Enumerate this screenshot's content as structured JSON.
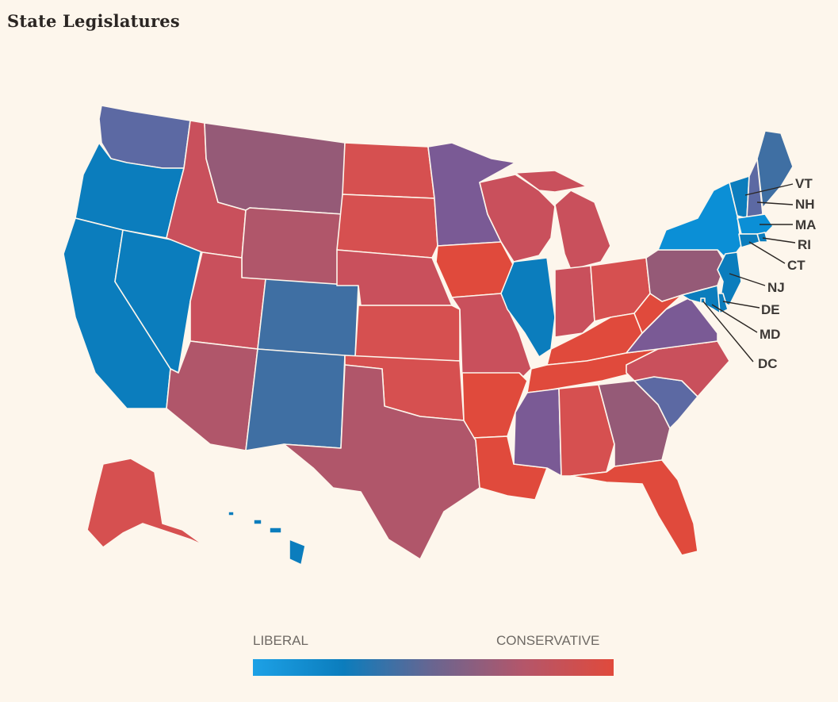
{
  "title": "State Legislatures",
  "legend": {
    "min_label": "LIBERAL",
    "max_label": "CONSERVATIVE",
    "gradient": [
      "#1da1e6",
      "#0b7dbd",
      "#6a6590",
      "#b4566a",
      "#e04a3c"
    ]
  },
  "palette": {
    "lib_bright": "#0b8fd6",
    "lib": "#0b7dbd",
    "blue_gray": "#3f6fa3",
    "indigo": "#5c69a3",
    "purple": "#7a5a95",
    "mauve": "#955a77",
    "rose": "#b0566a",
    "red_rose": "#c9505c",
    "red": "#d65050",
    "bright_red": "#e04a3c"
  },
  "states": [
    {
      "id": "WA",
      "color": "indigo"
    },
    {
      "id": "OR",
      "color": "lib"
    },
    {
      "id": "CA",
      "color": "lib"
    },
    {
      "id": "NV",
      "color": "lib"
    },
    {
      "id": "ID",
      "color": "red_rose"
    },
    {
      "id": "MT",
      "color": "mauve"
    },
    {
      "id": "WY",
      "color": "rose"
    },
    {
      "id": "UT",
      "color": "red_rose"
    },
    {
      "id": "AZ",
      "color": "rose"
    },
    {
      "id": "CO",
      "color": "blue_gray"
    },
    {
      "id": "NM",
      "color": "blue_gray"
    },
    {
      "id": "ND",
      "color": "red"
    },
    {
      "id": "SD",
      "color": "red"
    },
    {
      "id": "NE",
      "color": "red_rose"
    },
    {
      "id": "KS",
      "color": "red"
    },
    {
      "id": "OK",
      "color": "red"
    },
    {
      "id": "TX",
      "color": "rose"
    },
    {
      "id": "MN",
      "color": "purple"
    },
    {
      "id": "IA",
      "color": "bright_red"
    },
    {
      "id": "MO",
      "color": "red_rose"
    },
    {
      "id": "AR",
      "color": "bright_red"
    },
    {
      "id": "LA",
      "color": "bright_red"
    },
    {
      "id": "WI",
      "color": "red_rose"
    },
    {
      "id": "IL",
      "color": "lib"
    },
    {
      "id": "MI",
      "color": "red_rose"
    },
    {
      "id": "IN",
      "color": "red_rose"
    },
    {
      "id": "OH",
      "color": "red"
    },
    {
      "id": "KY",
      "color": "bright_red"
    },
    {
      "id": "TN",
      "color": "bright_red"
    },
    {
      "id": "MS",
      "color": "purple"
    },
    {
      "id": "AL",
      "color": "red"
    },
    {
      "id": "GA",
      "color": "mauve"
    },
    {
      "id": "FL",
      "color": "bright_red"
    },
    {
      "id": "SC",
      "color": "indigo"
    },
    {
      "id": "NC",
      "color": "red_rose"
    },
    {
      "id": "VA",
      "color": "purple"
    },
    {
      "id": "WV",
      "color": "bright_red"
    },
    {
      "id": "PA",
      "color": "mauve"
    },
    {
      "id": "NY",
      "color": "lib_bright"
    },
    {
      "id": "NJ",
      "color": "lib"
    },
    {
      "id": "DE",
      "color": "lib"
    },
    {
      "id": "MD",
      "color": "lib"
    },
    {
      "id": "DC",
      "color": "lib"
    },
    {
      "id": "VT",
      "color": "lib"
    },
    {
      "id": "NH",
      "color": "indigo"
    },
    {
      "id": "ME",
      "color": "blue_gray"
    },
    {
      "id": "MA",
      "color": "lib_bright"
    },
    {
      "id": "RI",
      "color": "lib"
    },
    {
      "id": "CT",
      "color": "lib"
    },
    {
      "id": "AK",
      "color": "red"
    },
    {
      "id": "HI",
      "color": "lib"
    }
  ],
  "labels": [
    "VT",
    "NH",
    "MA",
    "RI",
    "CT",
    "NJ",
    "DE",
    "MD",
    "DC"
  ]
}
